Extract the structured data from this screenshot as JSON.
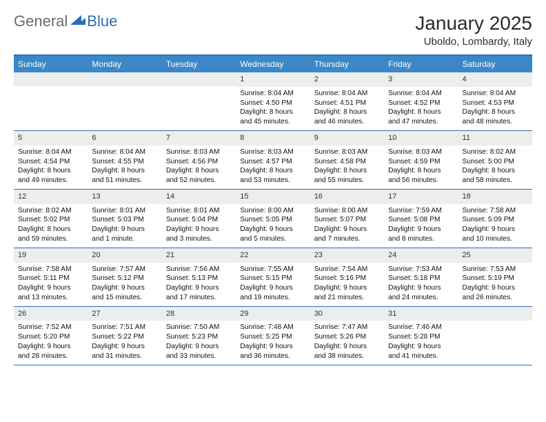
{
  "logo": {
    "general": "General",
    "blue": "Blue"
  },
  "title": "January 2025",
  "location": "Uboldo, Lombardy, Italy",
  "colors": {
    "header_bg": "#3b87c8",
    "border": "#2a6db5",
    "daynum_bg": "#eceded",
    "logo_gray": "#6a6a6a",
    "logo_blue": "#2a6db5"
  },
  "weekdays": [
    "Sunday",
    "Monday",
    "Tuesday",
    "Wednesday",
    "Thursday",
    "Friday",
    "Saturday"
  ],
  "weeks": [
    [
      null,
      null,
      null,
      {
        "n": "1",
        "sr": "Sunrise: 8:04 AM",
        "ss": "Sunset: 4:50 PM",
        "d1": "Daylight: 8 hours",
        "d2": "and 45 minutes."
      },
      {
        "n": "2",
        "sr": "Sunrise: 8:04 AM",
        "ss": "Sunset: 4:51 PM",
        "d1": "Daylight: 8 hours",
        "d2": "and 46 minutes."
      },
      {
        "n": "3",
        "sr": "Sunrise: 8:04 AM",
        "ss": "Sunset: 4:52 PM",
        "d1": "Daylight: 8 hours",
        "d2": "and 47 minutes."
      },
      {
        "n": "4",
        "sr": "Sunrise: 8:04 AM",
        "ss": "Sunset: 4:53 PM",
        "d1": "Daylight: 8 hours",
        "d2": "and 48 minutes."
      }
    ],
    [
      {
        "n": "5",
        "sr": "Sunrise: 8:04 AM",
        "ss": "Sunset: 4:54 PM",
        "d1": "Daylight: 8 hours",
        "d2": "and 49 minutes."
      },
      {
        "n": "6",
        "sr": "Sunrise: 8:04 AM",
        "ss": "Sunset: 4:55 PM",
        "d1": "Daylight: 8 hours",
        "d2": "and 51 minutes."
      },
      {
        "n": "7",
        "sr": "Sunrise: 8:03 AM",
        "ss": "Sunset: 4:56 PM",
        "d1": "Daylight: 8 hours",
        "d2": "and 52 minutes."
      },
      {
        "n": "8",
        "sr": "Sunrise: 8:03 AM",
        "ss": "Sunset: 4:57 PM",
        "d1": "Daylight: 8 hours",
        "d2": "and 53 minutes."
      },
      {
        "n": "9",
        "sr": "Sunrise: 8:03 AM",
        "ss": "Sunset: 4:58 PM",
        "d1": "Daylight: 8 hours",
        "d2": "and 55 minutes."
      },
      {
        "n": "10",
        "sr": "Sunrise: 8:03 AM",
        "ss": "Sunset: 4:59 PM",
        "d1": "Daylight: 8 hours",
        "d2": "and 56 minutes."
      },
      {
        "n": "11",
        "sr": "Sunrise: 8:02 AM",
        "ss": "Sunset: 5:00 PM",
        "d1": "Daylight: 8 hours",
        "d2": "and 58 minutes."
      }
    ],
    [
      {
        "n": "12",
        "sr": "Sunrise: 8:02 AM",
        "ss": "Sunset: 5:02 PM",
        "d1": "Daylight: 8 hours",
        "d2": "and 59 minutes."
      },
      {
        "n": "13",
        "sr": "Sunrise: 8:01 AM",
        "ss": "Sunset: 5:03 PM",
        "d1": "Daylight: 9 hours",
        "d2": "and 1 minute."
      },
      {
        "n": "14",
        "sr": "Sunrise: 8:01 AM",
        "ss": "Sunset: 5:04 PM",
        "d1": "Daylight: 9 hours",
        "d2": "and 3 minutes."
      },
      {
        "n": "15",
        "sr": "Sunrise: 8:00 AM",
        "ss": "Sunset: 5:05 PM",
        "d1": "Daylight: 9 hours",
        "d2": "and 5 minutes."
      },
      {
        "n": "16",
        "sr": "Sunrise: 8:00 AM",
        "ss": "Sunset: 5:07 PM",
        "d1": "Daylight: 9 hours",
        "d2": "and 7 minutes."
      },
      {
        "n": "17",
        "sr": "Sunrise: 7:59 AM",
        "ss": "Sunset: 5:08 PM",
        "d1": "Daylight: 9 hours",
        "d2": "and 8 minutes."
      },
      {
        "n": "18",
        "sr": "Sunrise: 7:58 AM",
        "ss": "Sunset: 5:09 PM",
        "d1": "Daylight: 9 hours",
        "d2": "and 10 minutes."
      }
    ],
    [
      {
        "n": "19",
        "sr": "Sunrise: 7:58 AM",
        "ss": "Sunset: 5:11 PM",
        "d1": "Daylight: 9 hours",
        "d2": "and 13 minutes."
      },
      {
        "n": "20",
        "sr": "Sunrise: 7:57 AM",
        "ss": "Sunset: 5:12 PM",
        "d1": "Daylight: 9 hours",
        "d2": "and 15 minutes."
      },
      {
        "n": "21",
        "sr": "Sunrise: 7:56 AM",
        "ss": "Sunset: 5:13 PM",
        "d1": "Daylight: 9 hours",
        "d2": "and 17 minutes."
      },
      {
        "n": "22",
        "sr": "Sunrise: 7:55 AM",
        "ss": "Sunset: 5:15 PM",
        "d1": "Daylight: 9 hours",
        "d2": "and 19 minutes."
      },
      {
        "n": "23",
        "sr": "Sunrise: 7:54 AM",
        "ss": "Sunset: 5:16 PM",
        "d1": "Daylight: 9 hours",
        "d2": "and 21 minutes."
      },
      {
        "n": "24",
        "sr": "Sunrise: 7:53 AM",
        "ss": "Sunset: 5:18 PM",
        "d1": "Daylight: 9 hours",
        "d2": "and 24 minutes."
      },
      {
        "n": "25",
        "sr": "Sunrise: 7:53 AM",
        "ss": "Sunset: 5:19 PM",
        "d1": "Daylight: 9 hours",
        "d2": "and 26 minutes."
      }
    ],
    [
      {
        "n": "26",
        "sr": "Sunrise: 7:52 AM",
        "ss": "Sunset: 5:20 PM",
        "d1": "Daylight: 9 hours",
        "d2": "and 28 minutes."
      },
      {
        "n": "27",
        "sr": "Sunrise: 7:51 AM",
        "ss": "Sunset: 5:22 PM",
        "d1": "Daylight: 9 hours",
        "d2": "and 31 minutes."
      },
      {
        "n": "28",
        "sr": "Sunrise: 7:50 AM",
        "ss": "Sunset: 5:23 PM",
        "d1": "Daylight: 9 hours",
        "d2": "and 33 minutes."
      },
      {
        "n": "29",
        "sr": "Sunrise: 7:48 AM",
        "ss": "Sunset: 5:25 PM",
        "d1": "Daylight: 9 hours",
        "d2": "and 36 minutes."
      },
      {
        "n": "30",
        "sr": "Sunrise: 7:47 AM",
        "ss": "Sunset: 5:26 PM",
        "d1": "Daylight: 9 hours",
        "d2": "and 38 minutes."
      },
      {
        "n": "31",
        "sr": "Sunrise: 7:46 AM",
        "ss": "Sunset: 5:28 PM",
        "d1": "Daylight: 9 hours",
        "d2": "and 41 minutes."
      },
      null
    ]
  ]
}
